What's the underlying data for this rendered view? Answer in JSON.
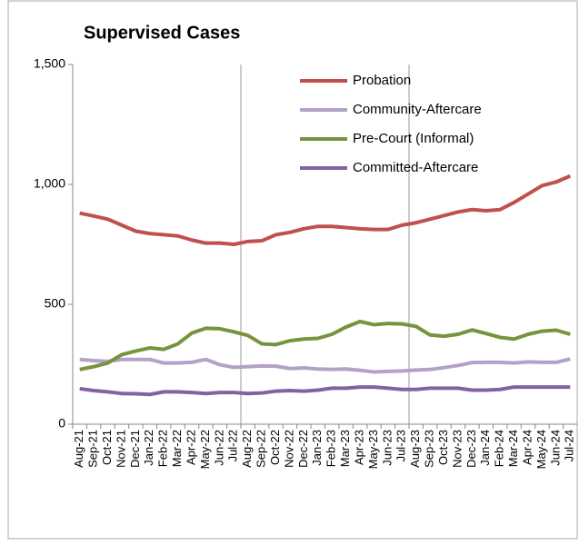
{
  "chart_data": {
    "type": "line",
    "title": "Supervised Cases",
    "categories": [
      "Aug-21",
      "Sep-21",
      "Oct-21",
      "Nov-21",
      "Dec-21",
      "Jan-22",
      "Feb-22",
      "Mar-22",
      "Apr-22",
      "May-22",
      "Jun-22",
      "Jul-22",
      "Aug-22",
      "Sep-22",
      "Oct-22",
      "Nov-22",
      "Dec-22",
      "Jan-23",
      "Feb-23",
      "Mar-23",
      "Apr-23",
      "May-23",
      "Jun-23",
      "Jul-23",
      "Aug-23",
      "Sep-23",
      "Oct-23",
      "Nov-23",
      "Dec-23",
      "Jan-24",
      "Feb-24",
      "Mar-24",
      "Apr-24",
      "May-24",
      "Jun-24",
      "Jul-24"
    ],
    "series": [
      {
        "name": "Probation",
        "color": "#c0504d",
        "values": [
          880,
          868,
          855,
          830,
          805,
          795,
          790,
          785,
          768,
          755,
          755,
          750,
          762,
          765,
          790,
          800,
          815,
          825,
          825,
          820,
          815,
          812,
          812,
          830,
          840,
          855,
          870,
          885,
          895,
          890,
          895,
          925,
          960,
          995,
          1010,
          1035
        ]
      },
      {
        "name": "Community-Aftercare",
        "color": "#b3a2c7",
        "values": [
          270,
          265,
          262,
          270,
          270,
          270,
          255,
          255,
          258,
          270,
          248,
          237,
          240,
          243,
          242,
          232,
          235,
          230,
          228,
          230,
          225,
          218,
          220,
          222,
          226,
          228,
          236,
          245,
          257,
          258,
          258,
          255,
          260,
          258,
          258,
          272
        ]
      },
      {
        "name": "Pre-Court (Informal)",
        "color": "#77933c",
        "values": [
          228,
          240,
          255,
          290,
          305,
          318,
          312,
          335,
          380,
          400,
          398,
          385,
          370,
          335,
          332,
          348,
          355,
          358,
          375,
          405,
          428,
          415,
          420,
          418,
          408,
          372,
          367,
          375,
          393,
          378,
          362,
          355,
          375,
          388,
          392,
          375
        ]
      },
      {
        "name": "Committed-Aftercare",
        "color": "#8064a2",
        "values": [
          148,
          140,
          135,
          128,
          127,
          124,
          135,
          135,
          132,
          128,
          132,
          132,
          128,
          130,
          138,
          140,
          138,
          142,
          150,
          150,
          155,
          155,
          150,
          145,
          145,
          150,
          150,
          150,
          142,
          142,
          145,
          155,
          155,
          155,
          155,
          155
        ]
      }
    ],
    "ylim": [
      0,
      1500
    ],
    "yticks": [
      0,
      500,
      {
        "value": 1000,
        "label": "1,000"
      },
      {
        "value": 1500,
        "label": "1,500"
      }
    ],
    "legend": "top-right"
  }
}
